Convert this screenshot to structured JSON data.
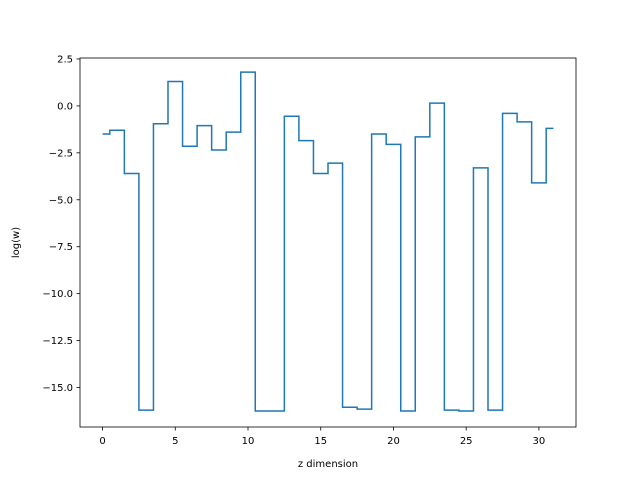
{
  "chart_data": {
    "type": "line",
    "drawstyle": "steps-mid",
    "title": "",
    "xlabel": "z dimension",
    "ylabel": "log(w)",
    "xlim": [
      -1.55,
      32.55
    ],
    "ylim": [
      -17.1,
      2.55
    ],
    "xticks": [
      0,
      5,
      10,
      15,
      20,
      25,
      30
    ],
    "yticks": [
      2.5,
      0.0,
      -2.5,
      -5.0,
      -7.5,
      -10.0,
      -12.5,
      -15.0
    ],
    "ytick_labels": [
      "2.5",
      "0.0",
      "−2.5",
      "−5.0",
      "−7.5",
      "−10.0",
      "−12.5",
      "−15.0"
    ],
    "grid": false,
    "series": [
      {
        "color": "#1f77b4",
        "x": [
          0,
          1,
          2,
          3,
          4,
          5,
          6,
          7,
          8,
          9,
          10,
          11,
          12,
          13,
          14,
          15,
          16,
          17,
          18,
          19,
          20,
          21,
          22,
          23,
          24,
          25,
          26,
          27,
          28,
          29,
          30,
          31
        ],
        "y": [
          -1.5,
          -1.3,
          -3.6,
          -16.2,
          -0.95,
          1.3,
          -2.15,
          -1.05,
          -2.35,
          -1.4,
          1.8,
          -16.25,
          -16.25,
          -0.55,
          -1.85,
          -3.6,
          -3.05,
          -16.05,
          -16.15,
          -1.5,
          -2.05,
          -16.25,
          -1.65,
          0.15,
          -16.2,
          -16.25,
          -3.3,
          -16.2,
          -0.4,
          -0.85,
          -4.1,
          -1.2
        ]
      }
    ]
  }
}
